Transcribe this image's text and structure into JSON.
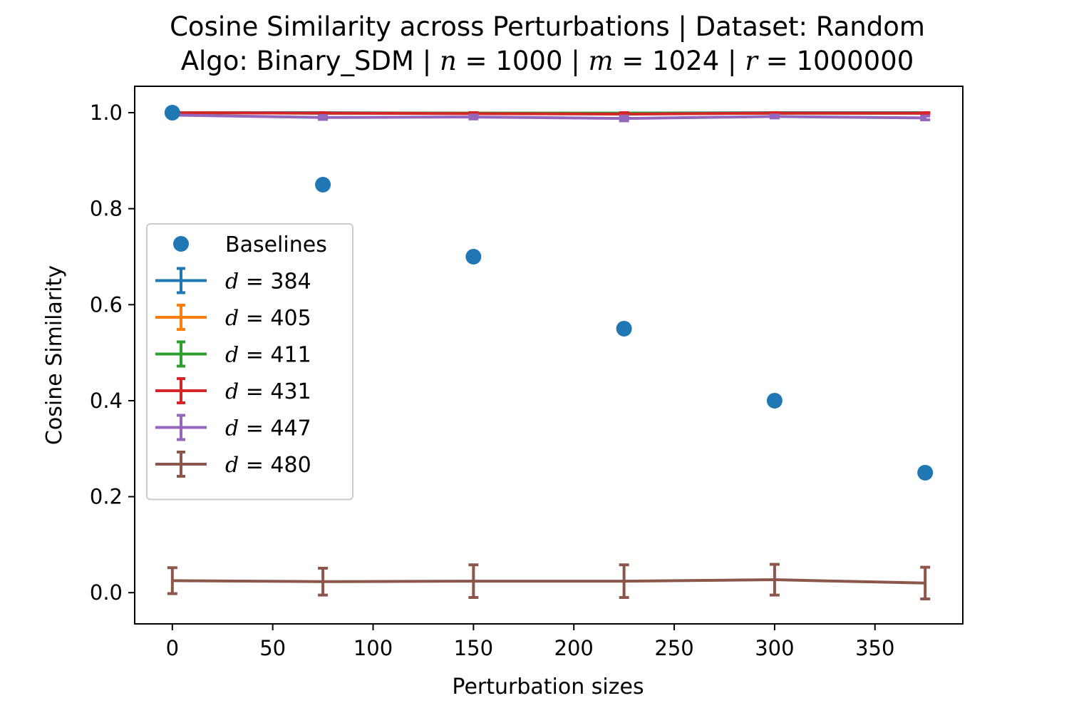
{
  "chart_data": {
    "type": "line",
    "title_line1": "Cosine Similarity across Perturbations | Dataset: Random",
    "title_line2": {
      "prefix": "Algo: Binary_SDM | ",
      "n_var": "n",
      "n_val": " = 1000 | ",
      "m_var": "m",
      "m_val": " = 1024 | ",
      "r_var": "r",
      "r_val": " = 1000000"
    },
    "xlabel": "Perturbation sizes",
    "ylabel": "Cosine Similarity",
    "xlim": [
      -18.75,
      393.75
    ],
    "ylim": [
      -0.065,
      1.055
    ],
    "xticks": [
      0,
      50,
      100,
      150,
      200,
      250,
      300,
      350
    ],
    "yticks": [
      0.0,
      0.2,
      0.4,
      0.6,
      0.8,
      1.0
    ],
    "ytick_labels": [
      "0.0",
      "0.2",
      "0.4",
      "0.6",
      "0.8",
      "1.0"
    ],
    "x": [
      0,
      75,
      150,
      225,
      300,
      375
    ],
    "baselines": {
      "name": "Baselines",
      "color": "#1f77b4",
      "values": [
        1.0,
        0.85,
        0.7,
        0.55,
        0.4,
        0.25
      ]
    },
    "series": [
      {
        "name_var": "d",
        "name_val": " = 384",
        "color": "#1f77b4",
        "values": [
          1.0,
          1.0,
          0.999,
          0.999,
          1.0,
          1.0
        ],
        "errors": [
          0.0,
          0.0,
          0.001,
          0.001,
          0.0,
          0.0
        ]
      },
      {
        "name_var": "d",
        "name_val": " = 405",
        "color": "#ff7f0e",
        "values": [
          1.0,
          0.999,
          0.999,
          0.998,
          0.999,
          0.999
        ],
        "errors": [
          0.001,
          0.001,
          0.001,
          0.001,
          0.001,
          0.001
        ]
      },
      {
        "name_var": "d",
        "name_val": " = 411",
        "color": "#2ca02c",
        "values": [
          1.0,
          0.999,
          0.999,
          0.999,
          0.999,
          0.999
        ],
        "errors": [
          0.001,
          0.001,
          0.001,
          0.001,
          0.001,
          0.001
        ]
      },
      {
        "name_var": "d",
        "name_val": " = 431",
        "color": "#d62728",
        "values": [
          1.0,
          0.999,
          0.998,
          0.997,
          0.999,
          0.999
        ],
        "errors": [
          0.001,
          0.001,
          0.002,
          0.003,
          0.001,
          0.001
        ]
      },
      {
        "name_var": "d",
        "name_val": " = 447",
        "color": "#9467bd",
        "values": [
          0.995,
          0.99,
          0.991,
          0.988,
          0.992,
          0.989
        ],
        "errors": [
          0.002,
          0.004,
          0.004,
          0.005,
          0.003,
          0.004
        ]
      },
      {
        "name_var": "d",
        "name_val": " = 480",
        "color": "#8c564b",
        "values": [
          0.025,
          0.023,
          0.024,
          0.024,
          0.027,
          0.02
        ],
        "errors": [
          0.027,
          0.028,
          0.034,
          0.034,
          0.032,
          0.033
        ]
      }
    ],
    "legend": "center-left",
    "grid": false
  }
}
